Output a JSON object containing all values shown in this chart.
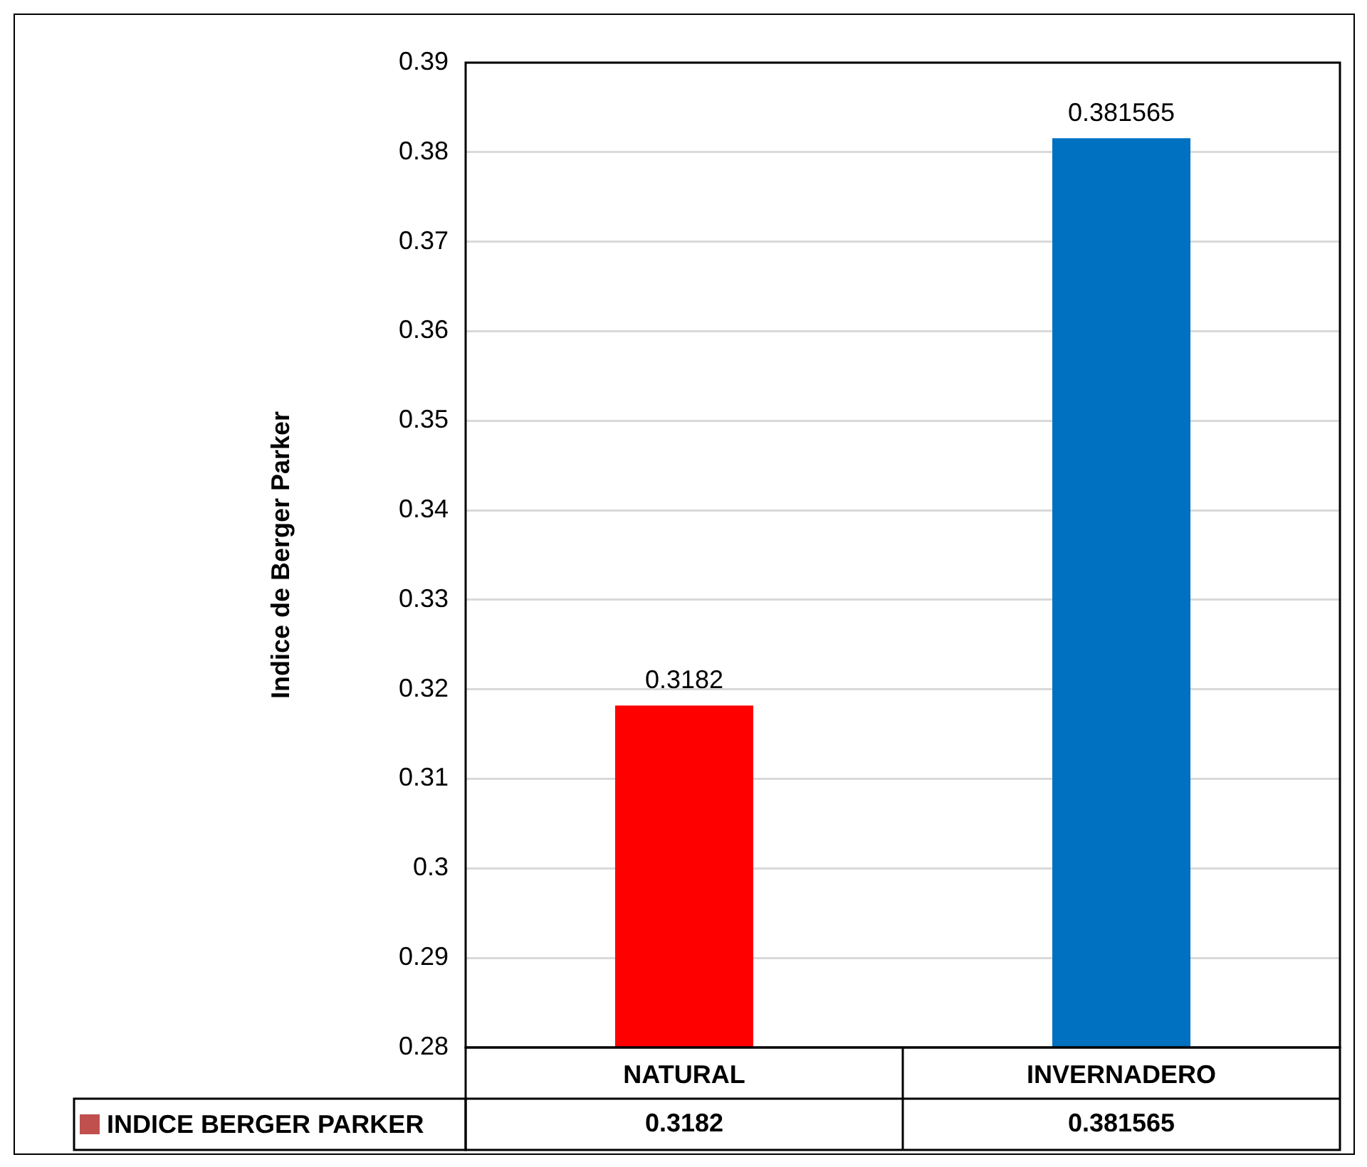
{
  "chart_data": {
    "type": "bar",
    "ylabel": "Indice de Berger Parker",
    "categories": [
      "NATURAL",
      "INVERNADERO"
    ],
    "series": [
      {
        "name": "INDICE BERGER PARKER",
        "color": "#c0504d",
        "colors": [
          "#ff0000",
          "#0070c0"
        ],
        "values": [
          0.3182,
          0.381565
        ],
        "value_labels": [
          "0.3182",
          "0.381565"
        ]
      }
    ],
    "ylim": [
      0.28,
      0.39
    ],
    "yticks": [
      0.28,
      0.29,
      0.3,
      0.31,
      0.32,
      0.33,
      0.34,
      0.35,
      0.36,
      0.37,
      0.38,
      0.39
    ],
    "grid": "y",
    "legend": "bottom"
  }
}
